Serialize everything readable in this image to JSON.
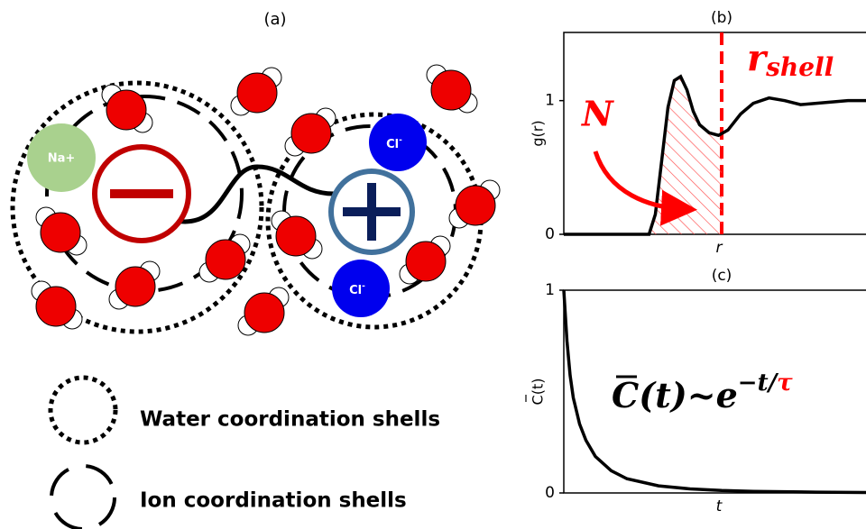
{
  "panel_a": {
    "label": "(a)",
    "na_label": "Na+",
    "cl_labels": [
      {
        "base": "Cl",
        "sup": "-"
      },
      {
        "base": "Cl",
        "sup": "-"
      }
    ],
    "legend": [
      "Water coordination shells",
      "Ion coordination shells"
    ]
  },
  "chart_data": [
    {
      "type": "line",
      "title": "(b)",
      "x_label": "r",
      "y_label": "g(r)",
      "annotations": {
        "n": "N",
        "r_shell": {
          "base": "r",
          "sub": "shell"
        }
      },
      "x": [
        0,
        2.7,
        2.9,
        3.1,
        3.3,
        3.5,
        3.7,
        3.9,
        4.1,
        4.3,
        4.6,
        4.9,
        5.2,
        5.6,
        6.0,
        6.5,
        7.0,
        7.5,
        8.0,
        8.5,
        9.0,
        9.5,
        10
      ],
      "series": [
        {
          "color": "#000000",
          "values": [
            0,
            0,
            0.15,
            0.55,
            0.95,
            1.15,
            1.18,
            1.08,
            0.92,
            0.82,
            0.76,
            0.74,
            0.78,
            0.9,
            0.98,
            1.02,
            1.0,
            0.97,
            0.98,
            0.99,
            1.0,
            1.0,
            1.0
          ]
        }
      ],
      "shell_x": 5.0,
      "shell_color": "#ff0000",
      "xlim": [
        0,
        10
      ],
      "ylim": [
        0,
        1.51
      ],
      "yticks": [
        0,
        1
      ]
    },
    {
      "type": "line",
      "title": "(c)",
      "x_label": "t",
      "y_label": "C(t)",
      "formula": {
        "base": "C(t)~e",
        "exponent": "−t/",
        "tau": "τ"
      },
      "x": [
        0,
        0.1,
        0.2,
        0.3,
        0.5,
        0.7,
        1,
        1.5,
        2,
        3,
        4,
        5,
        6,
        8,
        10
      ],
      "series": [
        {
          "color": "#000000",
          "values": [
            1,
            0.75,
            0.58,
            0.47,
            0.34,
            0.26,
            0.18,
            0.11,
            0.07,
            0.035,
            0.02,
            0.012,
            0.008,
            0.004,
            0.002
          ]
        }
      ],
      "xlim": [
        0,
        10
      ],
      "ylim": [
        0,
        1
      ],
      "yticks": [
        0,
        1
      ]
    }
  ]
}
